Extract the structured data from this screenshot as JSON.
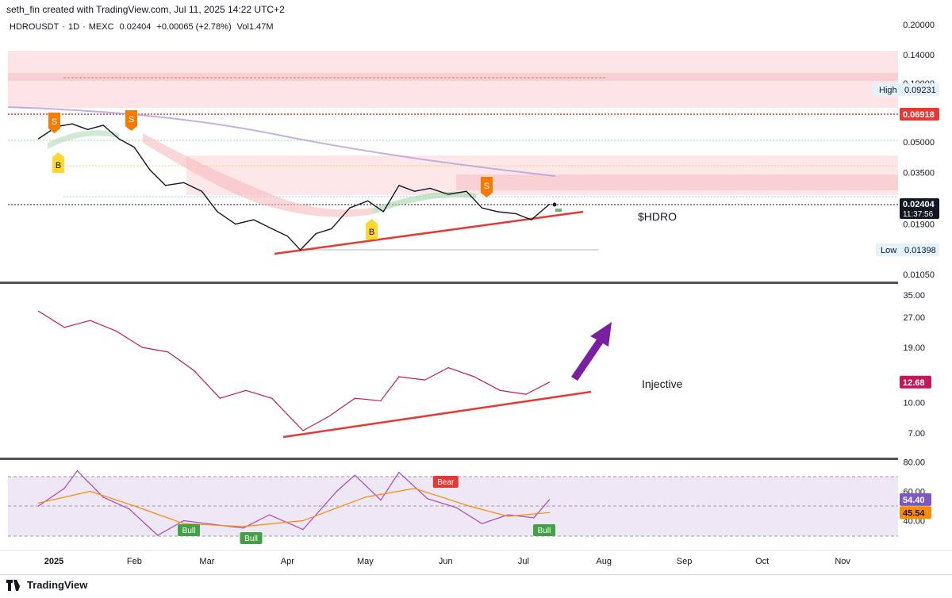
{
  "header": {
    "credit": "seth_fin created with TradingView.com, Jul 11, 2025 14:22 UTC+2",
    "symbol": "HDROUSDT",
    "interval": "1D",
    "exchange": "MEXC",
    "price": "0.02404",
    "change": "+0.00065 (+2.78%)",
    "volume": "Vol1.47M",
    "separator": "·"
  },
  "footer": {
    "brand": "TradingView"
  },
  "annotations": {
    "main_label": "$HDRO",
    "indicator_label": "Injective",
    "high_label": "High",
    "low_label": "Low",
    "timer": "11:37:56"
  },
  "colors": {
    "price": "#131722",
    "sma": "#b39ddb",
    "trendline": "#e53935",
    "arrow": "#7b1fa2",
    "inj": "#c2185b",
    "rsi": "#ab47bc",
    "rsi_ma": "#fb8c00",
    "zone": "#f8d7d9",
    "bull": "#43a047",
    "bear": "#e53935",
    "sell_tag": "#f57c00",
    "buy_tag": "#fdd835"
  },
  "chart_data": [
    {
      "type": "line",
      "name": "price",
      "y_scale": "log",
      "y_ticks": [
        "0.20000",
        "0.14000",
        "0.10000",
        "0.05000",
        "0.03500",
        "0.01900",
        "0.01050"
      ],
      "x_ticks": [
        "2025",
        "Feb",
        "Mar",
        "Apr",
        "May",
        "Jun",
        "Jul",
        "Aug",
        "Sep",
        "Oct",
        "Nov"
      ],
      "series": [
        {
          "name": "",
          "values": [
            {
              "x": "2024-12-26",
              "y": 0.052
            },
            {
              "x": "2025-01-02",
              "y": 0.06
            },
            {
              "x": "2025-01-08",
              "y": 0.062
            },
            {
              "x": "2025-01-14",
              "y": 0.058
            },
            {
              "x": "2025-01-20",
              "y": 0.061
            },
            {
              "x": "2025-01-26",
              "y": 0.052
            },
            {
              "x": "2025-02-01",
              "y": 0.047
            },
            {
              "x": "2025-02-07",
              "y": 0.036
            },
            {
              "x": "2025-02-13",
              "y": 0.03
            },
            {
              "x": "2025-02-20",
              "y": 0.031
            },
            {
              "x": "2025-02-27",
              "y": 0.028
            },
            {
              "x": "2025-03-05",
              "y": 0.022
            },
            {
              "x": "2025-03-12",
              "y": 0.019
            },
            {
              "x": "2025-03-19",
              "y": 0.02
            },
            {
              "x": "2025-03-26",
              "y": 0.018
            },
            {
              "x": "2025-04-01",
              "y": 0.0165
            },
            {
              "x": "2025-04-06",
              "y": 0.014
            },
            {
              "x": "2025-04-12",
              "y": 0.017
            },
            {
              "x": "2025-04-18",
              "y": 0.018
            },
            {
              "x": "2025-04-25",
              "y": 0.023
            },
            {
              "x": "2025-05-02",
              "y": 0.025
            },
            {
              "x": "2025-05-08",
              "y": 0.022
            },
            {
              "x": "2025-05-14",
              "y": 0.03
            },
            {
              "x": "2025-05-20",
              "y": 0.028
            },
            {
              "x": "2025-05-26",
              "y": 0.029
            },
            {
              "x": "2025-06-02",
              "y": 0.027
            },
            {
              "x": "2025-06-09",
              "y": 0.028
            },
            {
              "x": "2025-06-15",
              "y": 0.023
            },
            {
              "x": "2025-06-21",
              "y": 0.022
            },
            {
              "x": "2025-06-28",
              "y": 0.0215
            },
            {
              "x": "2025-07-04",
              "y": 0.02
            },
            {
              "x": "2025-07-11",
              "y": 0.02404
            }
          ]
        }
      ],
      "levels": [
        {
          "label": "0.09231",
          "name": "High"
        },
        {
          "label": "0.06918",
          "name": ""
        },
        {
          "label": "0.01398",
          "name": "Low"
        },
        {
          "label": "0.02404",
          "name": "last"
        }
      ],
      "signals": [
        {
          "type": "S",
          "date": "2025-01-01"
        },
        {
          "type": "S",
          "date": "2025-01-28"
        },
        {
          "type": "B",
          "date": "2025-01-02"
        },
        {
          "type": "B",
          "date": "2025-04-30"
        },
        {
          "type": "S",
          "date": "2025-06-16"
        }
      ]
    },
    {
      "type": "line",
      "name": "Injective",
      "y_scale": "log",
      "y_ticks": [
        "35.00",
        "27.00",
        "19.00",
        "10.00",
        "7.00"
      ],
      "last_value": "12.68",
      "series": [
        {
          "name": "",
          "values": [
            {
              "x": "2024-12-26",
              "y": 29
            },
            {
              "x": "2025-01-05",
              "y": 24
            },
            {
              "x": "2025-01-15",
              "y": 26
            },
            {
              "x": "2025-01-25",
              "y": 23
            },
            {
              "x": "2025-02-04",
              "y": 19
            },
            {
              "x": "2025-02-14",
              "y": 18
            },
            {
              "x": "2025-02-24",
              "y": 14.5
            },
            {
              "x": "2025-03-06",
              "y": 10.5
            },
            {
              "x": "2025-03-16",
              "y": 11.5
            },
            {
              "x": "2025-03-26",
              "y": 10.5
            },
            {
              "x": "2025-04-07",
              "y": 7.2
            },
            {
              "x": "2025-04-17",
              "y": 8.5
            },
            {
              "x": "2025-04-27",
              "y": 10.5
            },
            {
              "x": "2025-05-07",
              "y": 10.2
            },
            {
              "x": "2025-05-14",
              "y": 13.5
            },
            {
              "x": "2025-05-24",
              "y": 13
            },
            {
              "x": "2025-06-02",
              "y": 15
            },
            {
              "x": "2025-06-12",
              "y": 13.5
            },
            {
              "x": "2025-06-22",
              "y": 11.5
            },
            {
              "x": "2025-07-02",
              "y": 11
            },
            {
              "x": "2025-07-11",
              "y": 12.68
            }
          ]
        }
      ]
    },
    {
      "type": "line",
      "name": "RSI",
      "y_ticks": [
        "80.00",
        "60.00",
        "40.00"
      ],
      "last_values": [
        "54.40",
        "45.54"
      ],
      "series": [
        {
          "name": "",
          "values": [
            {
              "x": "2024-12-26",
              "y": 50
            },
            {
              "x": "2025-01-05",
              "y": 62
            },
            {
              "x": "2025-01-10",
              "y": 74
            },
            {
              "x": "2025-01-20",
              "y": 56
            },
            {
              "x": "2025-01-30",
              "y": 48
            },
            {
              "x": "2025-02-10",
              "y": 30
            },
            {
              "x": "2025-02-20",
              "y": 40
            },
            {
              "x": "2025-03-01",
              "y": 38
            },
            {
              "x": "2025-03-15",
              "y": 35
            },
            {
              "x": "2025-03-25",
              "y": 44
            },
            {
              "x": "2025-04-07",
              "y": 34
            },
            {
              "x": "2025-04-20",
              "y": 60
            },
            {
              "x": "2025-04-27",
              "y": 71
            },
            {
              "x": "2025-05-07",
              "y": 54
            },
            {
              "x": "2025-05-14",
              "y": 73
            },
            {
              "x": "2025-05-25",
              "y": 55
            },
            {
              "x": "2025-06-05",
              "y": 49
            },
            {
              "x": "2025-06-15",
              "y": 38
            },
            {
              "x": "2025-06-25",
              "y": 44
            },
            {
              "x": "2025-07-05",
              "y": 42
            },
            {
              "x": "2025-07-11",
              "y": 54.4
            }
          ]
        },
        {
          "name": "",
          "values": [
            {
              "x": "2024-12-26",
              "y": 52
            },
            {
              "x": "2025-01-15",
              "y": 60
            },
            {
              "x": "2025-02-01",
              "y": 50
            },
            {
              "x": "2025-02-20",
              "y": 38
            },
            {
              "x": "2025-03-15",
              "y": 36
            },
            {
              "x": "2025-04-07",
              "y": 40
            },
            {
              "x": "2025-05-01",
              "y": 56
            },
            {
              "x": "2025-05-20",
              "y": 62
            },
            {
              "x": "2025-06-10",
              "y": 50
            },
            {
              "x": "2025-06-25",
              "y": 43
            },
            {
              "x": "2025-07-11",
              "y": 45.54
            }
          ]
        }
      ],
      "signals": [
        {
          "type": "Bull",
          "date": "2025-02-22"
        },
        {
          "type": "Bull",
          "date": "2025-03-18"
        },
        {
          "type": "Bear",
          "date": "2025-06-01"
        },
        {
          "type": "Bull",
          "date": "2025-07-09"
        }
      ]
    }
  ]
}
